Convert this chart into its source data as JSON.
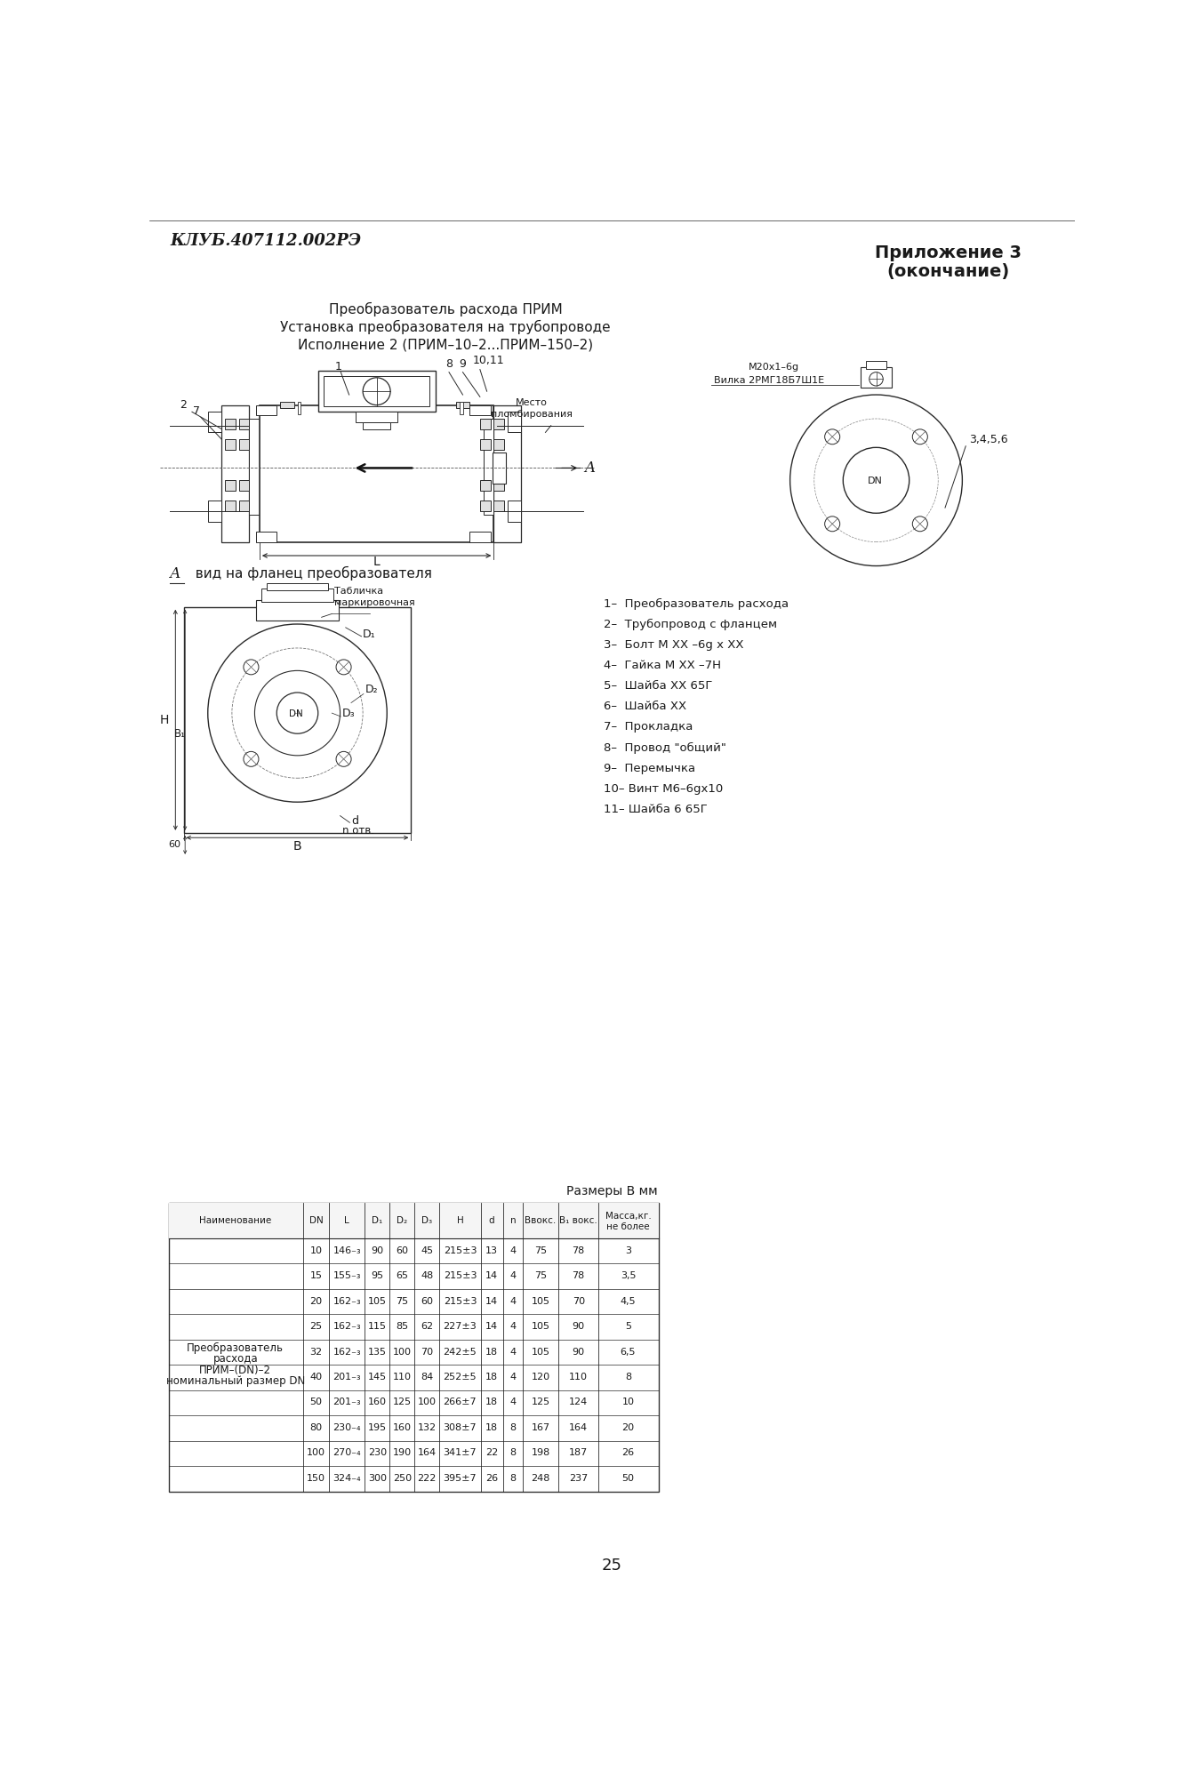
{
  "bg_color": "#ffffff",
  "text_color": "#1a1a1a",
  "line_color": "#2a2a2a",
  "header_left": "КЛУБ.407112.002РЭ",
  "header_right_line1": "Приложение 3",
  "header_right_line2": "(окончание)",
  "title_line1": "Преобразователь расхода ПРИМ",
  "title_line2": "Установка преобразователя на трубопроводе",
  "title_line3": "Исполнение 2 (ПРИМ–10–2...ПРИМ–150–2)",
  "legend_items": [
    "1–  Преобразователь расхода",
    "2–  Трубопровод с фланцем",
    "3–  Болт М ХХ –6g х ХХ",
    "4–  Гайка М ХХ –7Н",
    "5–  Шайба ХХ 65Г",
    "6–  Шайба ХХ",
    "7–  Прокладка",
    "8–  Провод \"общий\"",
    "9–  Перемычка",
    "10– Винт М6–6gх10",
    "11– Шайба 6 65Г"
  ],
  "view_label_A": "А",
  "view_label_rest": "  вид на фланец преобразователя",
  "table_title": "Размеры В мм",
  "table_name_cell": "Преобразователь\nрасхода\nПРИМ–(DN)–2\nноминальный размер DN",
  "table_rows": [
    [
      "10",
      "146₋₃",
      "90",
      "60",
      "45",
      "215±3",
      "13",
      "4",
      "75",
      "78",
      "3"
    ],
    [
      "15",
      "155₋₃",
      "95",
      "65",
      "48",
      "215±3",
      "14",
      "4",
      "75",
      "78",
      "3,5"
    ],
    [
      "20",
      "162₋₃",
      "105",
      "75",
      "60",
      "215±3",
      "14",
      "4",
      "105",
      "70",
      "4,5"
    ],
    [
      "25",
      "162₋₃",
      "115",
      "85",
      "62",
      "227±3",
      "14",
      "4",
      "105",
      "90",
      "5"
    ],
    [
      "32",
      "162₋₃",
      "135",
      "100",
      "70",
      "242±5",
      "18",
      "4",
      "105",
      "90",
      "6,5"
    ],
    [
      "40",
      "201₋₃",
      "145",
      "110",
      "84",
      "252±5",
      "18",
      "4",
      "120",
      "110",
      "8"
    ],
    [
      "50",
      "201₋₃",
      "160",
      "125",
      "100",
      "266±7",
      "18",
      "4",
      "125",
      "124",
      "10"
    ],
    [
      "80",
      "230₋₄",
      "195",
      "160",
      "132",
      "308±7",
      "18",
      "8",
      "167",
      "164",
      "20"
    ],
    [
      "100",
      "270₋₄",
      "230",
      "190",
      "164",
      "341±7",
      "22",
      "8",
      "198",
      "187",
      "26"
    ],
    [
      "150",
      "324₋₄",
      "300",
      "250",
      "222",
      "395±7",
      "26",
      "8",
      "248",
      "237",
      "50"
    ]
  ],
  "page_number": "25",
  "mesto_label": "Место\nпломбирования",
  "m20_label": "М20х1–6g",
  "vilka_label": "Вилка 2РМГ18Б7Ш1Е",
  "tablichka_label": "Табличка\nмаркировочная",
  "label_345": "3,4,5,6"
}
